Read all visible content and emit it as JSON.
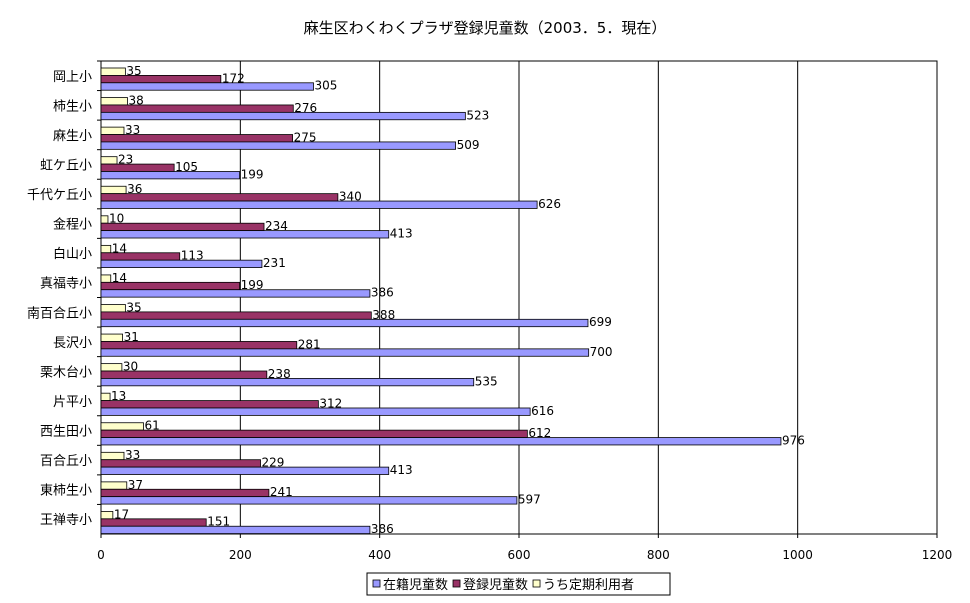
{
  "chart_data": {
    "type": "bar",
    "orientation": "horizontal",
    "title": "麻生区わくわくプラザ登録児童数（2003．5．現在）",
    "xlim": [
      0,
      1200
    ],
    "xticks": [
      0,
      200,
      400,
      600,
      800,
      1000,
      1200
    ],
    "grid": true,
    "legend_position": "bottom",
    "categories": [
      "岡上小",
      "柿生小",
      "麻生小",
      "虹ケ丘小",
      "千代ケ丘小",
      "金程小",
      "白山小",
      "真福寺小",
      "南百合丘小",
      "長沢小",
      "栗木台小",
      "片平小",
      "西生田小",
      "百合丘小",
      "東柿生小",
      "王禅寺小"
    ],
    "series": [
      {
        "name": "うち定期利用者",
        "color": "#ffffcc",
        "values": [
          35,
          38,
          33,
          23,
          36,
          10,
          14,
          14,
          35,
          31,
          30,
          13,
          61,
          33,
          37,
          17
        ]
      },
      {
        "name": "登録児童数",
        "color": "#993366",
        "values": [
          172,
          276,
          275,
          105,
          340,
          234,
          113,
          199,
          388,
          281,
          238,
          312,
          612,
          229,
          241,
          151
        ]
      },
      {
        "name": "在籍児童数",
        "color": "#9999ff",
        "values": [
          305,
          523,
          509,
          199,
          626,
          413,
          231,
          386,
          699,
          700,
          535,
          616,
          976,
          413,
          597,
          386
        ]
      }
    ],
    "legend_order": [
      2,
      1,
      0
    ]
  }
}
